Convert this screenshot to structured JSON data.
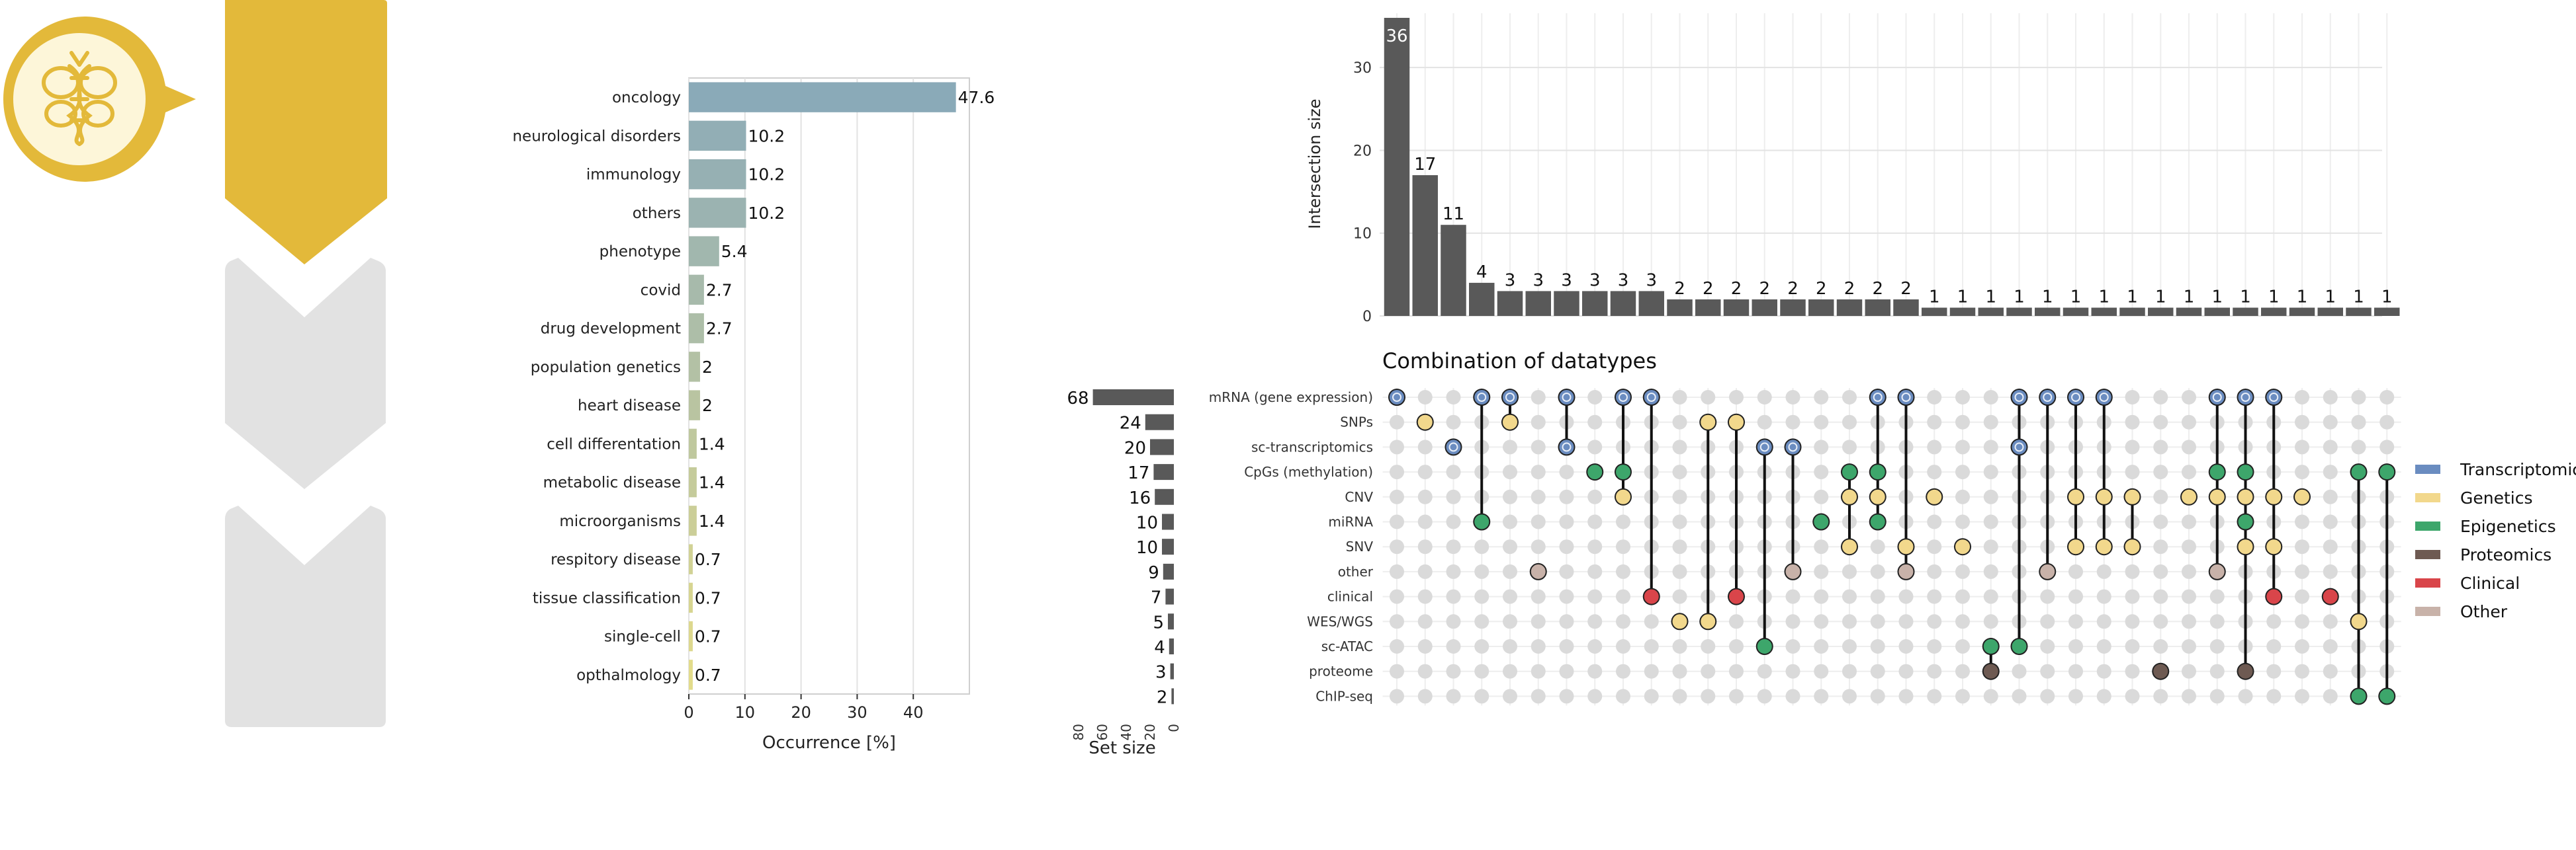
{
  "colors": {
    "header_gold": "#E3B93A",
    "logo_inner": "#FDF6D9",
    "inactive_chevron": "#E2E2E2",
    "bar_dark": "#595959",
    "grid": "#E6E6E6",
    "dot_empty": "#DADADA",
    "Transcriptomics": "#6A8CC0",
    "Genetics": "#F2D88C",
    "Epigenetics": "#3DA66B",
    "Proteomics": "#6E5A52",
    "Clinical": "#D9454A",
    "Other": "#C8B2A9"
  },
  "left_panel": {
    "logo_icon": "dna-bee-icon"
  },
  "chart_data": [
    {
      "type": "bar",
      "orientation": "horizontal",
      "categories": [
        "oncology",
        "neurological disorders",
        "immunology",
        "others",
        "phenotype",
        "covid",
        "drug development",
        "population genetics",
        "heart disease",
        "cell differentation",
        "metabolic disease",
        "microorganisms",
        "respitory disease",
        "tissue classification",
        "single-cell",
        "opthalmology"
      ],
      "values": [
        47.6,
        10.2,
        10.2,
        10.2,
        5.4,
        2.7,
        2.7,
        2,
        2,
        1.4,
        1.4,
        1.4,
        0.7,
        0.7,
        0.7,
        0.7
      ],
      "value_labels": [
        "47.6",
        "10.2",
        "10.2",
        "10.2",
        "5.4",
        "2.7",
        "2.7",
        "2",
        "2",
        "1.4",
        "1.4",
        "1.4",
        "0.7",
        "0.7",
        "0.7",
        "0.7"
      ],
      "xlabel": "Occurrence [%]",
      "ylabel": "",
      "xlim": [
        0,
        50
      ],
      "x_ticks": [
        0,
        10,
        20,
        30,
        40
      ],
      "grid": "vertical",
      "colors": [
        "#8AAAB8",
        "#92AEB5",
        "#96B0B3",
        "#9BB3B1",
        "#A1B7AE",
        "#A7BAAB",
        "#ADBEA8",
        "#B3C1A5",
        "#B9C4A1",
        "#BFC89E",
        "#C5CB9B",
        "#CBCE98",
        "#D1D295",
        "#D7D591",
        "#DDD88E",
        "#E3DC8B"
      ]
    },
    {
      "type": "upset",
      "sets": [
        "mRNA (gene expression)",
        "SNPs",
        "sc-transcriptomics",
        "CpGs (methylation)",
        "CNV",
        "miRNA",
        "SNV",
        "other",
        "clinical",
        "WES/WGS",
        "sc-ATAC",
        "proteome",
        "ChIP-seq"
      ],
      "set_sizes": [
        68,
        24,
        20,
        17,
        16,
        10,
        10,
        9,
        7,
        5,
        4,
        3,
        2
      ],
      "set_size_xlabel": "Set size",
      "set_size_ticks": [
        80,
        60,
        40,
        20,
        0
      ],
      "set_categories": [
        "Transcriptomics",
        "Genetics",
        "Transcriptomics",
        "Epigenetics",
        "Genetics",
        "Epigenetics",
        "Genetics",
        "Other",
        "Clinical",
        "Genetics",
        "Epigenetics",
        "Proteomics",
        "Epigenetics"
      ],
      "intersection_sizes": [
        36,
        17,
        11,
        4,
        3,
        3,
        3,
        3,
        3,
        3,
        2,
        2,
        2,
        2,
        2,
        2,
        2,
        2,
        2,
        1,
        1,
        1,
        1,
        1,
        1,
        1,
        1,
        1,
        1,
        1,
        1,
        1,
        1,
        1,
        1,
        1
      ],
      "intersections": [
        [
          0
        ],
        [
          1
        ],
        [
          2
        ],
        [
          0,
          5
        ],
        [
          0,
          1
        ],
        [
          7
        ],
        [
          0,
          2
        ],
        [
          3
        ],
        [
          0,
          3,
          4
        ],
        [
          0,
          8
        ],
        [
          9
        ],
        [
          1,
          9
        ],
        [
          1,
          8
        ],
        [
          2,
          10
        ],
        [
          2,
          7
        ],
        [
          5
        ],
        [
          3,
          4,
          6
        ],
        [
          0,
          3,
          4,
          5
        ],
        [
          0,
          6,
          7
        ],
        [
          4
        ],
        [
          6
        ],
        [
          10,
          11
        ],
        [
          0,
          2,
          10
        ],
        [
          0,
          7
        ],
        [
          0,
          4,
          6
        ],
        [
          0,
          4,
          6
        ],
        [
          4,
          6
        ],
        [
          11
        ],
        [
          4
        ],
        [
          0,
          3,
          4,
          7
        ],
        [
          0,
          3,
          4,
          5,
          6,
          11
        ],
        [
          0,
          4,
          6,
          8
        ],
        [
          4
        ],
        [
          8
        ],
        [
          3,
          9,
          12
        ],
        [
          3,
          12
        ]
      ],
      "ylabel": "Intersection size",
      "ylim": [
        0,
        36
      ],
      "y_ticks": [
        0,
        10,
        20,
        30
      ],
      "matrix_title": "Combination of datatypes",
      "legend": [
        "Transcriptomics",
        "Genetics",
        "Epigenetics",
        "Proteomics",
        "Clinical",
        "Other"
      ],
      "legend_position": "right",
      "grid": "both"
    }
  ]
}
